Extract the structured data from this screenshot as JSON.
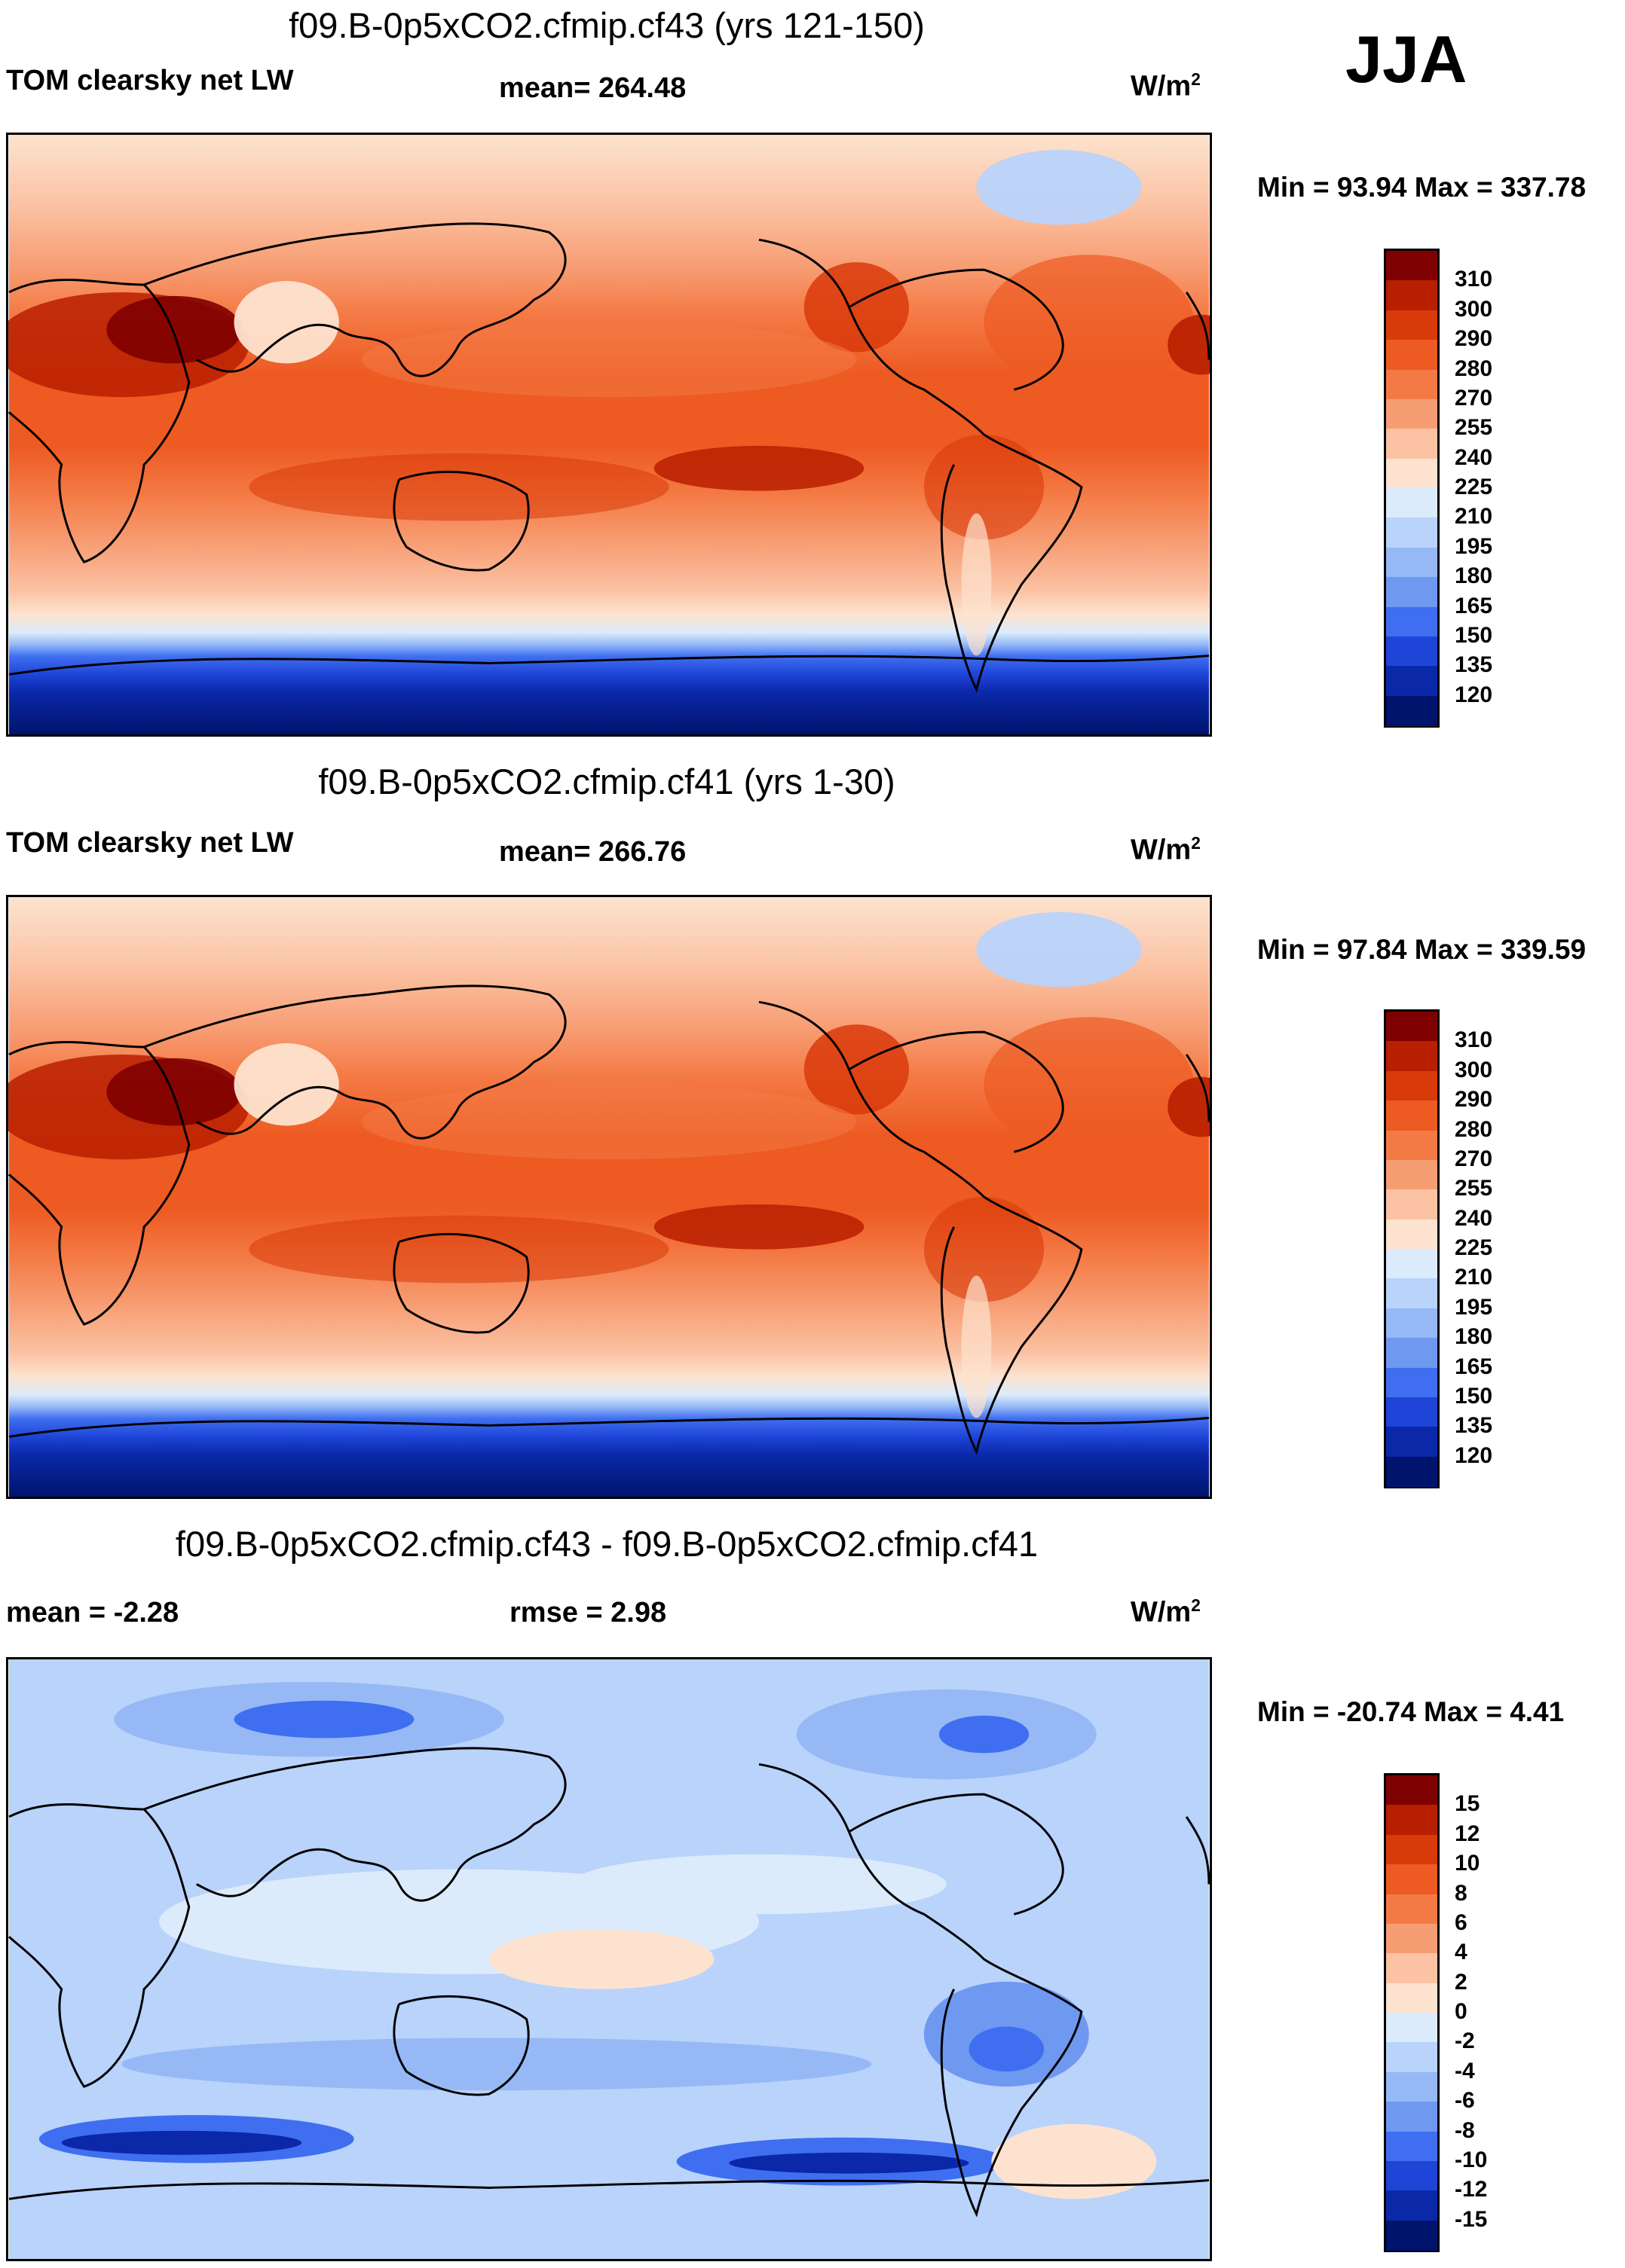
{
  "season": "JJA",
  "panels": [
    {
      "title": "f09.B-0p5xCO2.cfmip.cf43 (yrs 121-150)",
      "left_label": "TOM clearsky net LW",
      "center_label": "mean= 264.48",
      "units": "W/m",
      "units_exp": "2",
      "minmax": "Min =  93.94 Max = 337.78",
      "colorbar": {
        "labels": [
          "310",
          "300",
          "290",
          "280",
          "270",
          "255",
          "240",
          "225",
          "210",
          "195",
          "180",
          "165",
          "150",
          "135",
          "120"
        ],
        "colors": [
          "#7f0000",
          "#b81f00",
          "#d93a0a",
          "#ed5a22",
          "#f47a45",
          "#f79d73",
          "#fbc2a3",
          "#fde3cf",
          "#dcebfb",
          "#b9d3fb",
          "#96b9f6",
          "#6f98f1",
          "#3f6ff0",
          "#1e45d8",
          "#0a28a8",
          "#00146e"
        ]
      }
    },
    {
      "title": "f09.B-0p5xCO2.cfmip.cf41 (yrs 1-30)",
      "left_label": "TOM clearsky net LW",
      "center_label": "mean= 266.76",
      "units": "W/m",
      "units_exp": "2",
      "minmax": "Min =  97.84 Max = 339.59",
      "colorbar": {
        "labels": [
          "310",
          "300",
          "290",
          "280",
          "270",
          "255",
          "240",
          "225",
          "210",
          "195",
          "180",
          "165",
          "150",
          "135",
          "120"
        ],
        "colors": [
          "#7f0000",
          "#b81f00",
          "#d93a0a",
          "#ed5a22",
          "#f47a45",
          "#f79d73",
          "#fbc2a3",
          "#fde3cf",
          "#dcebfb",
          "#b9d3fb",
          "#96b9f6",
          "#6f98f1",
          "#3f6ff0",
          "#1e45d8",
          "#0a28a8",
          "#00146e"
        ]
      }
    },
    {
      "title": "f09.B-0p5xCO2.cfmip.cf43 - f09.B-0p5xCO2.cfmip.cf41",
      "left_label": "mean =  -2.28",
      "center_label": "rmse =   2.98",
      "units": "W/m",
      "units_exp": "2",
      "minmax": "Min = -20.74 Max =   4.41",
      "colorbar": {
        "labels": [
          "15",
          "12",
          "10",
          "8",
          "6",
          "4",
          "2",
          "0",
          "-2",
          "-4",
          "-6",
          "-8",
          "-10",
          "-12",
          "-15"
        ],
        "colors": [
          "#7f0000",
          "#b81f00",
          "#d93a0a",
          "#ed5a22",
          "#f47a45",
          "#f79d73",
          "#fbc2a3",
          "#fde3cf",
          "#dcebfb",
          "#b9d3fb",
          "#96b9f6",
          "#6f98f1",
          "#3f6ff0",
          "#1e45d8",
          "#0a28a8",
          "#00146e"
        ]
      }
    }
  ]
}
